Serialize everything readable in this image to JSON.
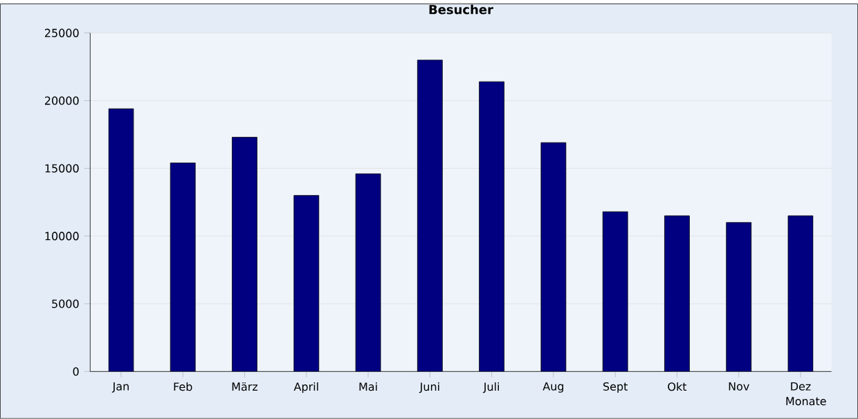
{
  "chart_data": {
    "type": "bar",
    "title": "Besucher",
    "xlabel": "Monate",
    "categories": [
      "Jan",
      "Feb",
      "März",
      "April",
      "Mai",
      "Juni",
      "Juli",
      "Aug",
      "Sept",
      "Okt",
      "Nov",
      "Dez"
    ],
    "values": [
      19400,
      15400,
      17300,
      13000,
      14600,
      23000,
      21400,
      16900,
      11800,
      11500,
      11000,
      11500
    ],
    "color": "#000080",
    "ylim": [
      0,
      25000
    ],
    "yticks": [
      0,
      5000,
      10000,
      15000,
      20000,
      25000
    ],
    "grid": "y"
  }
}
